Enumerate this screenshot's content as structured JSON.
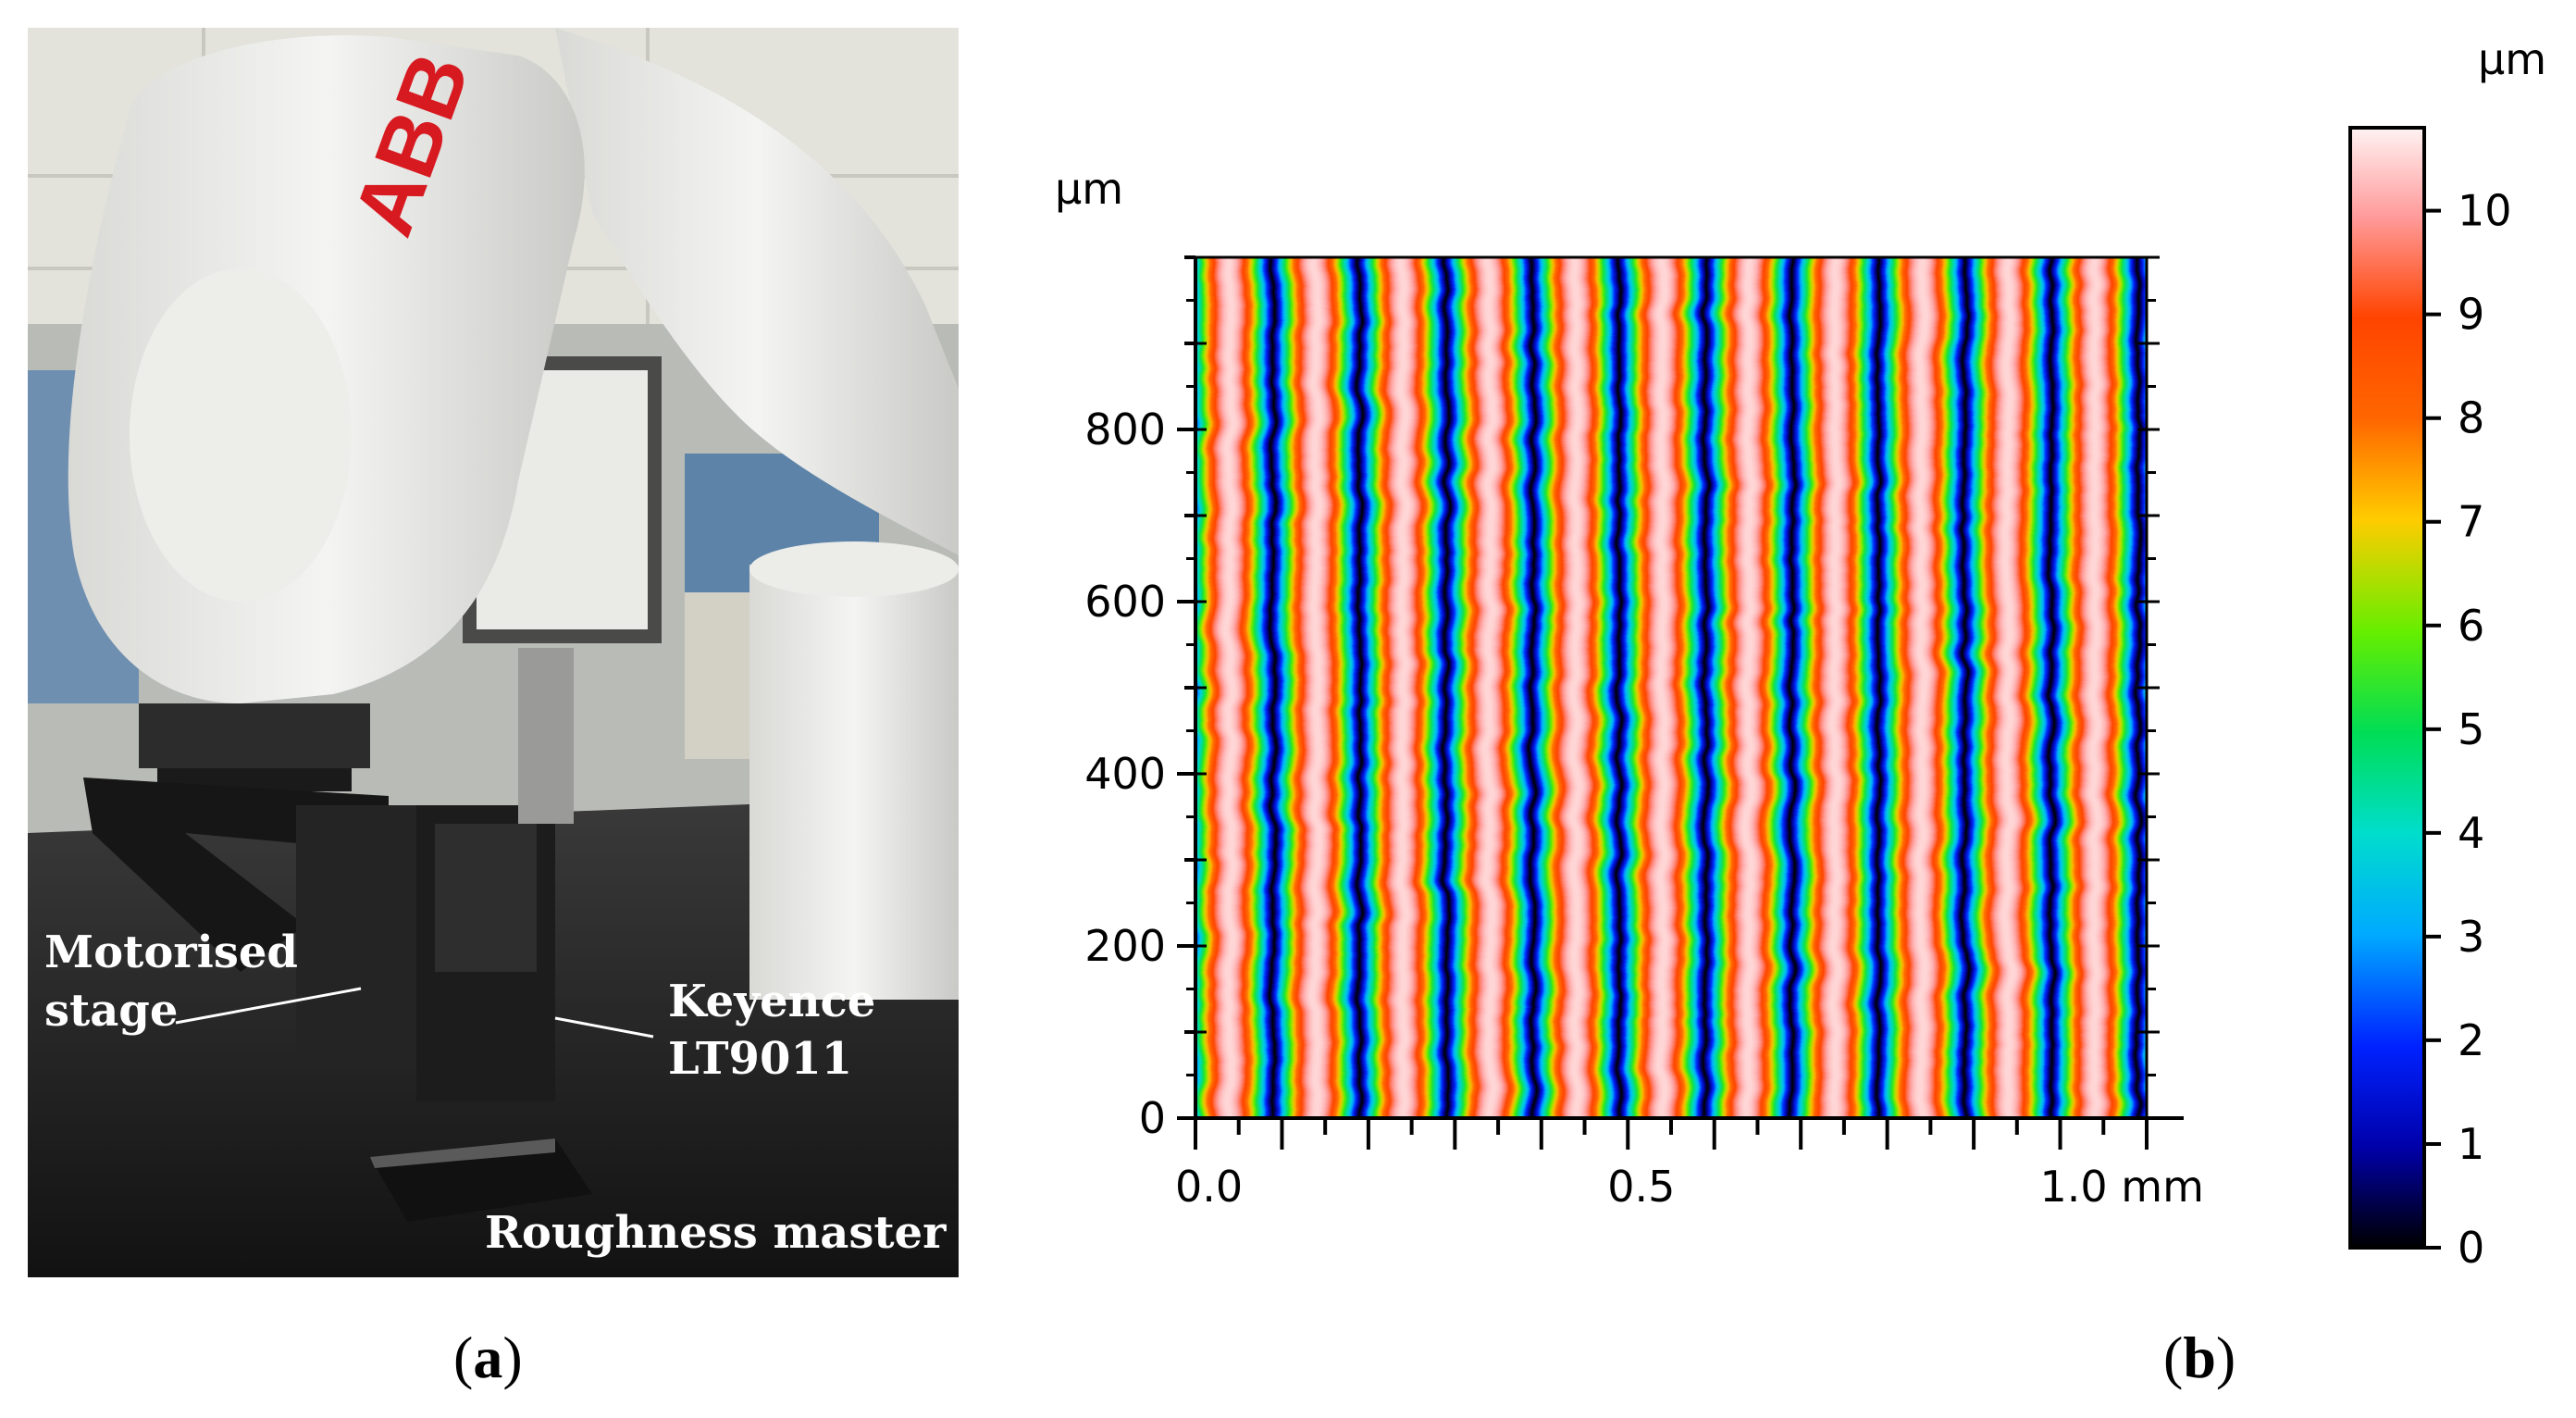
{
  "panels": {
    "a": {
      "label_open": "(",
      "label_letter": "a",
      "label_close": ")",
      "photo": {
        "brand_text": "ABB",
        "annotations": [
          {
            "id": "motorised-stage",
            "lines": [
              "Motorised",
              "stage"
            ]
          },
          {
            "id": "keyence",
            "lines": [
              "Keyence",
              "LT9011"
            ]
          },
          {
            "id": "roughness-master",
            "lines": [
              "Roughness master"
            ]
          }
        ]
      }
    },
    "b": {
      "label_open": "(",
      "label_letter": "b",
      "label_close": ")"
    }
  },
  "chart_data": {
    "type": "heatmap",
    "description_units": {
      "x_unit": "mm",
      "y_unit": "µm",
      "z_unit": "µm"
    },
    "xlim": [
      0.0,
      1.1
    ],
    "ylim": [
      0,
      1000
    ],
    "x_ticks": [
      0.0,
      0.5,
      1.0
    ],
    "x_tick_labels": [
      "0.0",
      "0.5",
      "1.0 mm"
    ],
    "y_ticks": [
      0,
      200,
      400,
      600,
      800
    ],
    "y_tick_labels": [
      "0",
      "200",
      "400",
      "600",
      "800"
    ],
    "y_unit_label": "µm",
    "colorbar": {
      "unit_label": "µm",
      "range": [
        0,
        10.8
      ],
      "ticks": [
        0,
        1,
        2,
        3,
        4,
        5,
        6,
        7,
        8,
        9,
        10
      ],
      "tick_labels": [
        "0",
        "1",
        "2",
        "3",
        "4",
        "5",
        "6",
        "7",
        "8",
        "9",
        "10"
      ],
      "colors": [
        "#000000",
        "#0000aa",
        "#0022ff",
        "#00aaff",
        "#00ddcc",
        "#00dd55",
        "#66ee00",
        "#ffcc00",
        "#ff6600",
        "#ff4400",
        "#ff9a9a",
        "#fff2f2"
      ]
    },
    "surface": {
      "pattern": "sinusoidal vertical grooves",
      "period_mm": 0.1,
      "groove_minima_x_mm": [
        0.09,
        0.19,
        0.29,
        0.39,
        0.49,
        0.59,
        0.69,
        0.79,
        0.89,
        0.99
      ],
      "height_min_um": 0,
      "height_max_um": 10.5
    },
    "grid": false
  }
}
